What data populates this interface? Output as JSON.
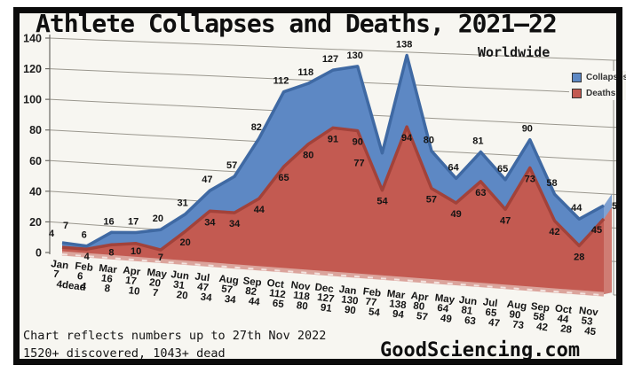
{
  "title": "Athlete Collapses and Deaths, 2021—22",
  "subtitle": "Worldwide",
  "legend": {
    "collapses": "Collapses",
    "deaths": "Deaths"
  },
  "footer": {
    "note_line1": "Chart reflects numbers up to 27th Nov 2022",
    "note_line2": "1520+ discovered, 1043+ dead",
    "website": "GoodSciencing.com"
  },
  "colors": {
    "collapses_fill": "#5d88c4",
    "collapses_edge": "#3f69a3",
    "collapses_side": "#7fa1d2",
    "deaths_fill": "#c35a51",
    "deaths_edge": "#a2423a",
    "deaths_side": "#cf7c73",
    "floor_strip": "#dba49c",
    "gridline": "#9a978e",
    "axis_line": "#6b6964",
    "text": "#141414",
    "plot_background": "#f7f6f1"
  },
  "chart_data": {
    "type": "area",
    "title": "Athlete Collapses and Deaths, 2021—22",
    "subtitle": "Worldwide",
    "categories": [
      "Jan",
      "Feb",
      "Mar",
      "Apr",
      "May",
      "Jun",
      "Jul",
      "Aug",
      "Sep",
      "Oct",
      "Nov",
      "Dec",
      "Jan",
      "Feb",
      "Mar",
      "Apr",
      "May",
      "Jun",
      "Jul",
      "Aug",
      "Sep",
      "Oct",
      "Nov"
    ],
    "series": [
      {
        "name": "Collapses",
        "values": [
          7,
          6,
          16,
          17,
          20,
          31,
          47,
          57,
          82,
          112,
          118,
          127,
          130,
          77,
          138,
          80,
          64,
          81,
          65,
          90,
          58,
          44,
          53
        ]
      },
      {
        "name": "Deaths",
        "values": [
          4,
          4,
          8,
          10,
          7,
          20,
          34,
          34,
          44,
          65,
          80,
          91,
          90,
          54,
          94,
          57,
          49,
          63,
          47,
          73,
          42,
          28,
          45
        ]
      }
    ],
    "x_tick_collapse_labels": [
      "7",
      "6",
      "16",
      "17",
      "20",
      "31",
      "47",
      "57",
      "82",
      "112",
      "118",
      "127",
      "130",
      "77",
      "138",
      "80",
      "64",
      "81",
      "65",
      "90",
      "58",
      "44",
      "53"
    ],
    "x_tick_death_labels": [
      "4dead",
      "4",
      "8",
      "10",
      "7",
      "20",
      "34",
      "34",
      "44",
      "65",
      "80",
      "91",
      "90",
      "54",
      "94",
      "57",
      "49",
      "63",
      "47",
      "73",
      "42",
      "28",
      "45"
    ],
    "ylim": [
      0,
      140
    ],
    "yticks": [
      0,
      20,
      40,
      60,
      80,
      100,
      120,
      140
    ],
    "grid": true,
    "legend_position": "right",
    "style": "3d-perspective-area"
  }
}
